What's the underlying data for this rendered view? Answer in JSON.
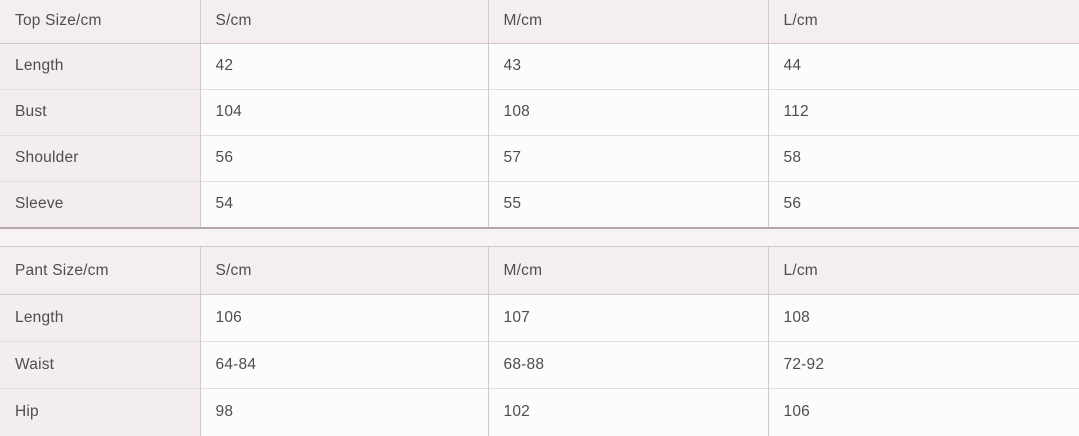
{
  "colors": {
    "header_bg": "#f4eeee",
    "label_column_bg": "#f3eded",
    "cell_bg": "#fdfcfc",
    "row_line": "#e3dddd",
    "column_line": "#cfc9c9",
    "separator_line": "#b3a7a9",
    "text": "#4e4e4e"
  },
  "chart_data": [
    {
      "type": "table",
      "title": "Top Size/cm",
      "columns": [
        "Top Size/cm",
        "S/cm",
        "M/cm",
        "L/cm"
      ],
      "rows": [
        [
          "Length",
          "42",
          "43",
          "44"
        ],
        [
          "Bust",
          "104",
          "108",
          "112"
        ],
        [
          "Shoulder",
          "56",
          "57",
          "58"
        ],
        [
          "Sleeve",
          "54",
          "55",
          "56"
        ]
      ]
    },
    {
      "type": "table",
      "title": "Pant Size/cm",
      "columns": [
        "Pant Size/cm",
        "S/cm",
        "M/cm",
        "L/cm"
      ],
      "rows": [
        [
          "Length",
          "106",
          "107",
          "108"
        ],
        [
          "Waist",
          "64-84",
          "68-88",
          "72-92"
        ],
        [
          "Hip",
          "98",
          "102",
          "106"
        ]
      ]
    }
  ]
}
